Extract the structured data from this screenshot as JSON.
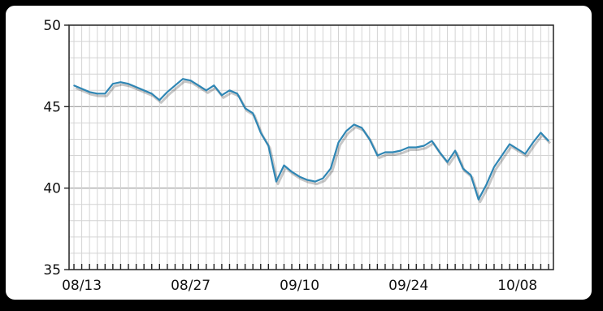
{
  "chart_data": {
    "type": "line",
    "title": "",
    "xlabel": "",
    "ylabel": "",
    "ylim": [
      35,
      50
    ],
    "yticks": [
      "35",
      "40",
      "45",
      "50"
    ],
    "xticks": [
      "08/13",
      "08/27",
      "09/10",
      "09/24",
      "10/08"
    ],
    "grid": true,
    "series": [
      {
        "color": "#2f86b4",
        "x": [
          "08/12",
          "08/13",
          "08/14",
          "08/15",
          "08/16",
          "08/17",
          "08/18",
          "08/19",
          "08/20",
          "08/21",
          "08/22",
          "08/23",
          "08/24",
          "08/25",
          "08/26",
          "08/27",
          "08/28",
          "08/29",
          "08/30",
          "08/31",
          "09/01",
          "09/02",
          "09/03",
          "09/04",
          "09/05",
          "09/06",
          "09/07",
          "09/08",
          "09/09",
          "09/10",
          "09/11",
          "09/12",
          "09/13",
          "09/14",
          "09/15",
          "09/16",
          "09/17",
          "09/18",
          "09/19",
          "09/20",
          "09/21",
          "09/22",
          "09/23",
          "09/24",
          "09/25",
          "09/26",
          "09/27",
          "09/28",
          "09/29",
          "09/30",
          "10/01",
          "10/02",
          "10/03",
          "10/04",
          "10/05",
          "10/06",
          "10/07",
          "10/08",
          "10/09",
          "10/10",
          "10/11",
          "10/12"
        ],
        "values": [
          46.3,
          46.1,
          45.9,
          45.8,
          45.8,
          46.4,
          46.5,
          46.4,
          46.2,
          46.0,
          45.8,
          45.4,
          45.9,
          46.3,
          46.7,
          46.6,
          46.3,
          46.0,
          46.3,
          45.7,
          46.0,
          45.8,
          44.9,
          44.6,
          43.4,
          42.6,
          40.4,
          41.4,
          41.0,
          40.7,
          40.5,
          40.4,
          40.6,
          41.2,
          42.8,
          43.5,
          43.9,
          43.7,
          43.0,
          42.0,
          42.2,
          42.2,
          42.3,
          42.5,
          42.5,
          42.6,
          42.9,
          42.2,
          41.6,
          42.3,
          41.2,
          40.8,
          39.3,
          40.2,
          41.3,
          42.0,
          42.7,
          42.4,
          42.1,
          42.8,
          43.4,
          42.9
        ]
      }
    ]
  }
}
